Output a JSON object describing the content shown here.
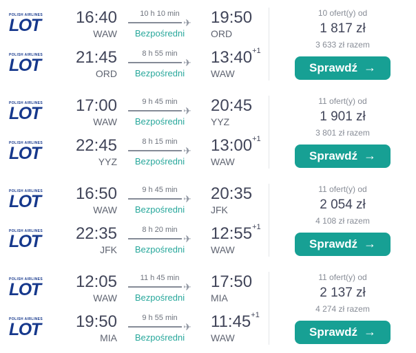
{
  "colors": {
    "accent_teal": "#17a094",
    "brand_navy": "#16388c",
    "direct_teal": "#27a79b"
  },
  "icons": {
    "plane": "✈",
    "arrow_right": "→"
  },
  "airline": {
    "name": "LOT",
    "tagline": "POLISH AIRLINES"
  },
  "results": [
    {
      "outbound": {
        "dep_time": "16:40",
        "dep_code": "WAW",
        "duration": "10 h 10 min",
        "stops": "Bezpośredni",
        "arr_time": "19:50",
        "arr_sup": "",
        "arr_code": "ORD"
      },
      "inbound": {
        "dep_time": "21:45",
        "dep_code": "ORD",
        "duration": "8 h 55 min",
        "stops": "Bezpośredni",
        "arr_time": "13:40",
        "arr_sup": "+1",
        "arr_code": "WAW"
      },
      "offers": "10 ofert(y) od",
      "price": "1 817 zł",
      "total": "3 633 zł razem",
      "cta": "Sprawdź"
    },
    {
      "outbound": {
        "dep_time": "17:00",
        "dep_code": "WAW",
        "duration": "9 h 45 min",
        "stops": "Bezpośredni",
        "arr_time": "20:45",
        "arr_sup": "",
        "arr_code": "YYZ"
      },
      "inbound": {
        "dep_time": "22:45",
        "dep_code": "YYZ",
        "duration": "8 h 15 min",
        "stops": "Bezpośredni",
        "arr_time": "13:00",
        "arr_sup": "+1",
        "arr_code": "WAW"
      },
      "offers": "11 ofert(y) od",
      "price": "1 901 zł",
      "total": "3 801 zł razem",
      "cta": "Sprawdź"
    },
    {
      "outbound": {
        "dep_time": "16:50",
        "dep_code": "WAW",
        "duration": "9 h 45 min",
        "stops": "Bezpośredni",
        "arr_time": "20:35",
        "arr_sup": "",
        "arr_code": "JFK"
      },
      "inbound": {
        "dep_time": "22:35",
        "dep_code": "JFK",
        "duration": "8 h 20 min",
        "stops": "Bezpośredni",
        "arr_time": "12:55",
        "arr_sup": "+1",
        "arr_code": "WAW"
      },
      "offers": "11 ofert(y) od",
      "price": "2 054 zł",
      "total": "4 108 zł razem",
      "cta": "Sprawdź"
    },
    {
      "outbound": {
        "dep_time": "12:05",
        "dep_code": "WAW",
        "duration": "11 h 45 min",
        "stops": "Bezpośredni",
        "arr_time": "17:50",
        "arr_sup": "",
        "arr_code": "MIA"
      },
      "inbound": {
        "dep_time": "19:50",
        "dep_code": "MIA",
        "duration": "9 h 55 min",
        "stops": "Bezpośredni",
        "arr_time": "11:45",
        "arr_sup": "+1",
        "arr_code": "WAW"
      },
      "offers": "11 ofert(y) od",
      "price": "2 137 zł",
      "total": "4 274 zł razem",
      "cta": "Sprawdź"
    }
  ]
}
